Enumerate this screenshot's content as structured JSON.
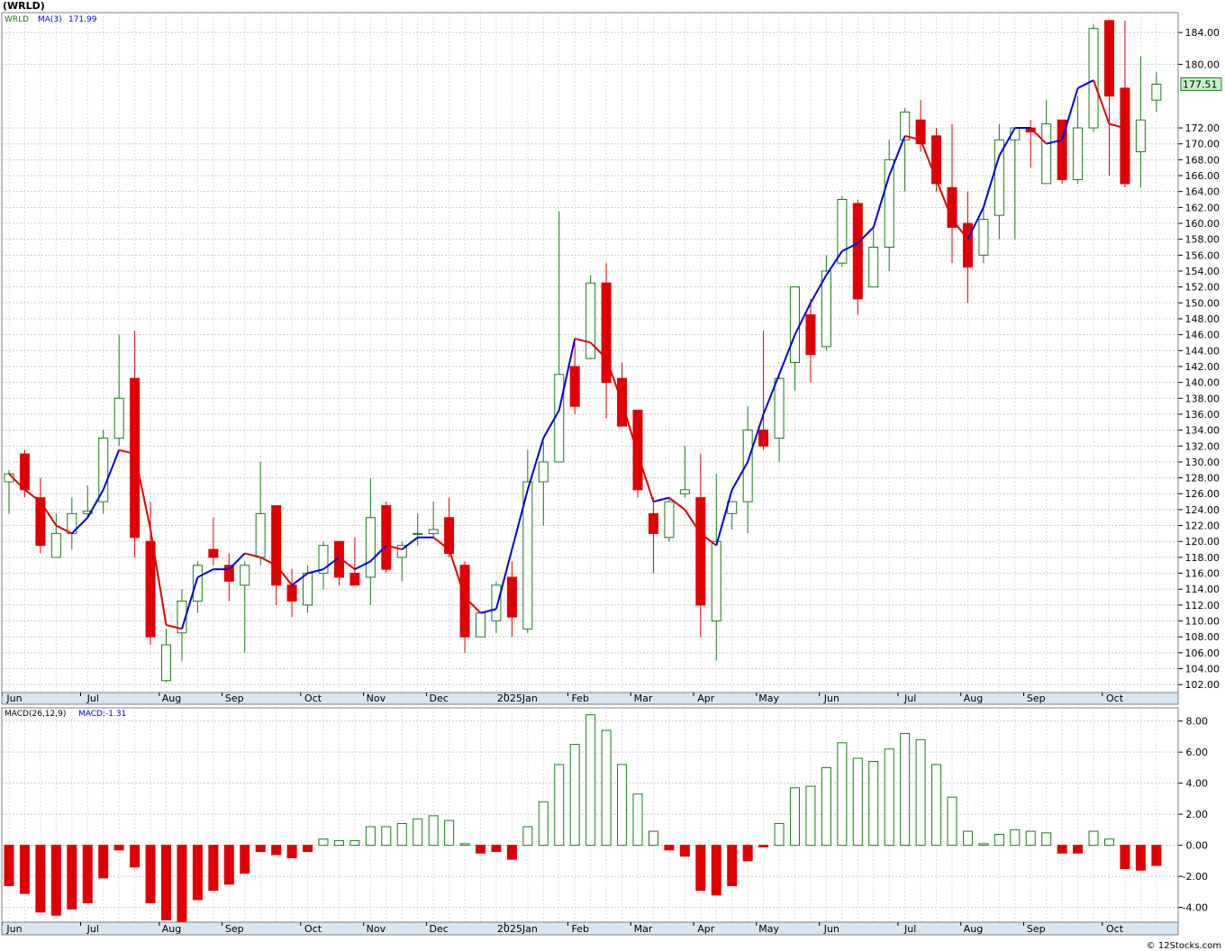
{
  "title": "(WRLD)",
  "footer": "© 12Stocks.com",
  "price_panel": {
    "legend_symbol": "WRLD",
    "legend_ma": "MA(3)",
    "legend_ma_value": "171.99",
    "last_price": "177.51",
    "colors": {
      "up": "#1a7a1a",
      "down": "#e00000",
      "ma_up": "#0000e0",
      "ma_down": "#e00000",
      "grid": "#c8c8c8",
      "axis_bar": "#d6e6f2"
    }
  },
  "macd_panel": {
    "legend_label": "MACD(26,12,9)",
    "legend_value": "MACD:-1.31"
  },
  "month_labels": [
    "Jun",
    "Jul",
    "Aug",
    "Sep",
    "Oct",
    "Nov",
    "Dec",
    "2025Jan",
    "Feb",
    "Mar",
    "Apr",
    "May",
    "Jun",
    "Jul",
    "Aug",
    "Sep",
    "Oct"
  ],
  "chart_data": [
    {
      "type": "candlestick",
      "title": "(WRLD)",
      "ylim": [
        101,
        186.5
      ],
      "y_ticks": [
        102,
        104,
        106,
        108,
        110,
        112,
        114,
        116,
        118,
        120,
        122,
        124,
        126,
        128,
        130,
        132,
        134,
        136,
        138,
        140,
        142,
        144,
        146,
        148,
        150,
        152,
        154,
        156,
        158,
        160,
        162,
        164,
        166,
        168,
        170,
        172,
        180,
        184
      ],
      "month_start_index": [
        0,
        5,
        10,
        14,
        19,
        23,
        27,
        32,
        36,
        40,
        44,
        48,
        52,
        57,
        61,
        65,
        70
      ],
      "candles": [
        {
          "o": 127.5,
          "h": 129.0,
          "l": 123.5,
          "c": 128.5
        },
        {
          "o": 131.0,
          "h": 131.5,
          "l": 125.5,
          "c": 126.5
        },
        {
          "o": 125.5,
          "h": 128.0,
          "l": 118.5,
          "c": 119.5
        },
        {
          "o": 118.0,
          "h": 123.5,
          "l": 118.0,
          "c": 121.0
        },
        {
          "o": 121.0,
          "h": 125.5,
          "l": 119.0,
          "c": 123.5
        },
        {
          "o": 123.5,
          "h": 127.0,
          "l": 123.0,
          "c": 123.8
        },
        {
          "o": 125.0,
          "h": 134.0,
          "l": 123.5,
          "c": 133.0
        },
        {
          "o": 133.0,
          "h": 146.0,
          "l": 132.0,
          "c": 138.0
        },
        {
          "o": 140.5,
          "h": 146.5,
          "l": 118.0,
          "c": 120.5
        },
        {
          "o": 120.0,
          "h": 125.0,
          "l": 107.0,
          "c": 108.0
        },
        {
          "o": 102.5,
          "h": 109.0,
          "l": 102.3,
          "c": 107.0
        },
        {
          "o": 108.5,
          "h": 114.0,
          "l": 105.0,
          "c": 112.5
        },
        {
          "o": 112.5,
          "h": 117.5,
          "l": 111.0,
          "c": 117.0
        },
        {
          "o": 119.0,
          "h": 123.0,
          "l": 117.0,
          "c": 118.0
        },
        {
          "o": 117.0,
          "h": 118.5,
          "l": 112.5,
          "c": 115.0
        },
        {
          "o": 114.5,
          "h": 117.5,
          "l": 106.0,
          "c": 117.0
        },
        {
          "o": 118.0,
          "h": 130.0,
          "l": 117.0,
          "c": 123.5
        },
        {
          "o": 124.5,
          "h": 124.5,
          "l": 112.0,
          "c": 114.5
        },
        {
          "o": 114.5,
          "h": 116.5,
          "l": 110.5,
          "c": 112.5
        },
        {
          "o": 112.0,
          "h": 117.0,
          "l": 111.0,
          "c": 116.0
        },
        {
          "o": 116.0,
          "h": 120.0,
          "l": 114.0,
          "c": 119.5
        },
        {
          "o": 120.0,
          "h": 120.0,
          "l": 114.5,
          "c": 115.5
        },
        {
          "o": 116.0,
          "h": 120.5,
          "l": 114.5,
          "c": 114.5
        },
        {
          "o": 115.5,
          "h": 128.0,
          "l": 112.0,
          "c": 123.0
        },
        {
          "o": 124.5,
          "h": 125.0,
          "l": 116.0,
          "c": 116.5
        },
        {
          "o": 118.0,
          "h": 120.0,
          "l": 115.0,
          "c": 119.5
        },
        {
          "o": 121.0,
          "h": 123.5,
          "l": 119.5,
          "c": 121.0
        },
        {
          "o": 121.0,
          "h": 125.0,
          "l": 120.5,
          "c": 121.5
        },
        {
          "o": 123.0,
          "h": 125.5,
          "l": 118.0,
          "c": 118.5
        },
        {
          "o": 117.0,
          "h": 117.5,
          "l": 106.0,
          "c": 108.0
        },
        {
          "o": 108.0,
          "h": 111.0,
          "l": 108.0,
          "c": 111.0
        },
        {
          "o": 110.0,
          "h": 115.0,
          "l": 108.5,
          "c": 114.5
        },
        {
          "o": 115.5,
          "h": 117.5,
          "l": 108.0,
          "c": 110.5
        },
        {
          "o": 109.0,
          "h": 131.5,
          "l": 108.5,
          "c": 127.5
        },
        {
          "o": 127.5,
          "h": 132.5,
          "l": 122.0,
          "c": 130.0
        },
        {
          "o": 130.0,
          "h": 161.5,
          "l": 130.0,
          "c": 141.0
        },
        {
          "o": 142.0,
          "h": 145.0,
          "l": 136.0,
          "c": 137.0
        },
        {
          "o": 143.0,
          "h": 153.5,
          "l": 143.0,
          "c": 152.5
        },
        {
          "o": 152.5,
          "h": 155.0,
          "l": 135.5,
          "c": 140.0
        },
        {
          "o": 140.5,
          "h": 142.5,
          "l": 135.0,
          "c": 134.5
        },
        {
          "o": 136.5,
          "h": 136.5,
          "l": 125.5,
          "c": 126.5
        },
        {
          "o": 123.5,
          "h": 125.5,
          "l": 116.0,
          "c": 121.0
        },
        {
          "o": 120.5,
          "h": 125.5,
          "l": 120.0,
          "c": 125.0
        },
        {
          "o": 126.0,
          "h": 132.0,
          "l": 125.5,
          "c": 126.5
        },
        {
          "o": 125.5,
          "h": 131.0,
          "l": 108.0,
          "c": 112.0
        },
        {
          "o": 110.0,
          "h": 128.5,
          "l": 105.0,
          "c": 120.0
        },
        {
          "o": 123.5,
          "h": 125.0,
          "l": 121.5,
          "c": 125.0
        },
        {
          "o": 125.0,
          "h": 137.0,
          "l": 121.0,
          "c": 134.0
        },
        {
          "o": 134.0,
          "h": 146.5,
          "l": 131.5,
          "c": 132.0
        },
        {
          "o": 133.0,
          "h": 141.0,
          "l": 130.0,
          "c": 140.5
        },
        {
          "o": 142.5,
          "h": 152.0,
          "l": 139.0,
          "c": 152.0
        },
        {
          "o": 148.5,
          "h": 150.5,
          "l": 140.0,
          "c": 143.5
        },
        {
          "o": 144.5,
          "h": 156.0,
          "l": 144.0,
          "c": 154.0
        },
        {
          "o": 155.0,
          "h": 163.5,
          "l": 154.5,
          "c": 163.0
        },
        {
          "o": 162.5,
          "h": 163.0,
          "l": 148.5,
          "c": 150.5
        },
        {
          "o": 152.0,
          "h": 159.5,
          "l": 152.0,
          "c": 157.0
        },
        {
          "o": 157.0,
          "h": 170.5,
          "l": 154.0,
          "c": 168.0
        },
        {
          "o": 170.5,
          "h": 174.5,
          "l": 164.0,
          "c": 174.0
        },
        {
          "o": 173.0,
          "h": 175.5,
          "l": 169.0,
          "c": 170.0
        },
        {
          "o": 171.0,
          "h": 172.0,
          "l": 164.0,
          "c": 165.0
        },
        {
          "o": 164.5,
          "h": 172.5,
          "l": 155.0,
          "c": 159.5
        },
        {
          "o": 160.0,
          "h": 164.0,
          "l": 150.0,
          "c": 154.5
        },
        {
          "o": 156.0,
          "h": 162.0,
          "l": 155.0,
          "c": 160.5
        },
        {
          "o": 161.0,
          "h": 172.5,
          "l": 158.0,
          "c": 170.5
        },
        {
          "o": 170.5,
          "h": 172.0,
          "l": 158.0,
          "c": 172.0
        },
        {
          "o": 172.0,
          "h": 173.0,
          "l": 167.0,
          "c": 171.5
        },
        {
          "o": 165.0,
          "h": 175.5,
          "l": 165.0,
          "c": 172.5
        },
        {
          "o": 173.0,
          "h": 173.0,
          "l": 165.0,
          "c": 165.5
        },
        {
          "o": 165.5,
          "h": 176.0,
          "l": 165.0,
          "c": 172.0
        },
        {
          "o": 172.0,
          "h": 185.0,
          "l": 171.5,
          "c": 184.5
        },
        {
          "o": 185.5,
          "h": 185.5,
          "l": 166.0,
          "c": 176.0
        },
        {
          "o": 177.0,
          "h": 185.5,
          "l": 164.5,
          "c": 165.0
        },
        {
          "o": 169.0,
          "h": 181.0,
          "l": 164.5,
          "c": 173.0
        },
        {
          "o": 175.5,
          "h": 179.0,
          "l": 174.0,
          "c": 177.5
        }
      ],
      "ma3": [
        128.5,
        126.5,
        125.0,
        122.0,
        121.0,
        123.0,
        126.5,
        131.5,
        131.0,
        121.5,
        109.5,
        109.0,
        115.5,
        116.5,
        116.5,
        118.5,
        118.0,
        117.0,
        114.5,
        116.0,
        116.5,
        118.0,
        116.5,
        117.5,
        119.5,
        119.0,
        120.5,
        120.5,
        119.0,
        113.0,
        111.0,
        111.5,
        119.0,
        126.5,
        133.0,
        136.5,
        145.5,
        145.0,
        143.0,
        137.5,
        131.0,
        125.0,
        125.5,
        124.0,
        121.0,
        119.5,
        126.5,
        130.0,
        136.0,
        141.0,
        146.0,
        150.0,
        153.5,
        156.5,
        157.5,
        159.5,
        166.0,
        171.0,
        170.5,
        165.5,
        160.5,
        158.0,
        162.0,
        168.5,
        172.0,
        172.0,
        170.0,
        170.5,
        177.0,
        178.0,
        172.5,
        172.0
      ]
    },
    {
      "type": "bar",
      "title": "MACD(26,12,9)",
      "ylim": [
        -4.95,
        8.85
      ],
      "y_ticks": [
        -4.0,
        -2.0,
        0.0,
        2.0,
        4.0,
        6.0,
        8.0
      ],
      "values": [
        -2.6,
        -3.1,
        -4.3,
        -4.5,
        -4.1,
        -3.7,
        -2.1,
        -0.3,
        -1.4,
        -3.7,
        -4.8,
        -4.9,
        -3.5,
        -2.9,
        -2.5,
        -1.8,
        -0.4,
        -0.6,
        -0.8,
        -0.4,
        0.4,
        0.3,
        0.3,
        1.2,
        1.2,
        1.4,
        1.7,
        1.9,
        1.6,
        0.1,
        -0.5,
        -0.4,
        -0.9,
        1.2,
        2.8,
        5.2,
        6.5,
        8.4,
        7.4,
        5.2,
        3.3,
        0.9,
        -0.3,
        -0.7,
        -2.9,
        -3.2,
        -2.6,
        -1.0,
        -0.1,
        1.4,
        3.7,
        3.8,
        5.0,
        6.6,
        5.6,
        5.4,
        6.2,
        7.2,
        6.8,
        5.2,
        3.1,
        0.9,
        0.1,
        0.7,
        1.0,
        0.9,
        0.8,
        -0.5,
        -0.5,
        0.9,
        0.4,
        -1.5,
        -1.6,
        -1.3
      ]
    }
  ]
}
